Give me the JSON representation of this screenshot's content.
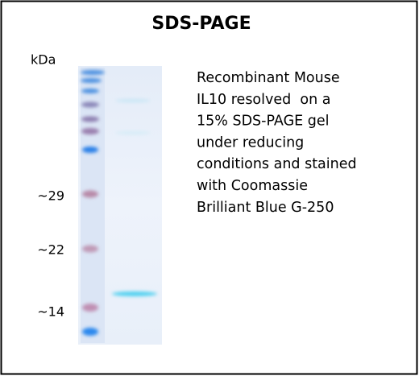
{
  "header": {
    "title": "SDS-PAGE"
  },
  "gel": {
    "unit": "kDa",
    "markers": [
      "~29",
      "~22",
      "~14"
    ]
  },
  "description": {
    "lines": [
      "Recombinant Mouse",
      "IL10 resolved  on a",
      "15% SDS-PAGE gel",
      "under reducing",
      "conditions and stained",
      "with Coomassie",
      "Brilliant Blue G-250"
    ]
  }
}
